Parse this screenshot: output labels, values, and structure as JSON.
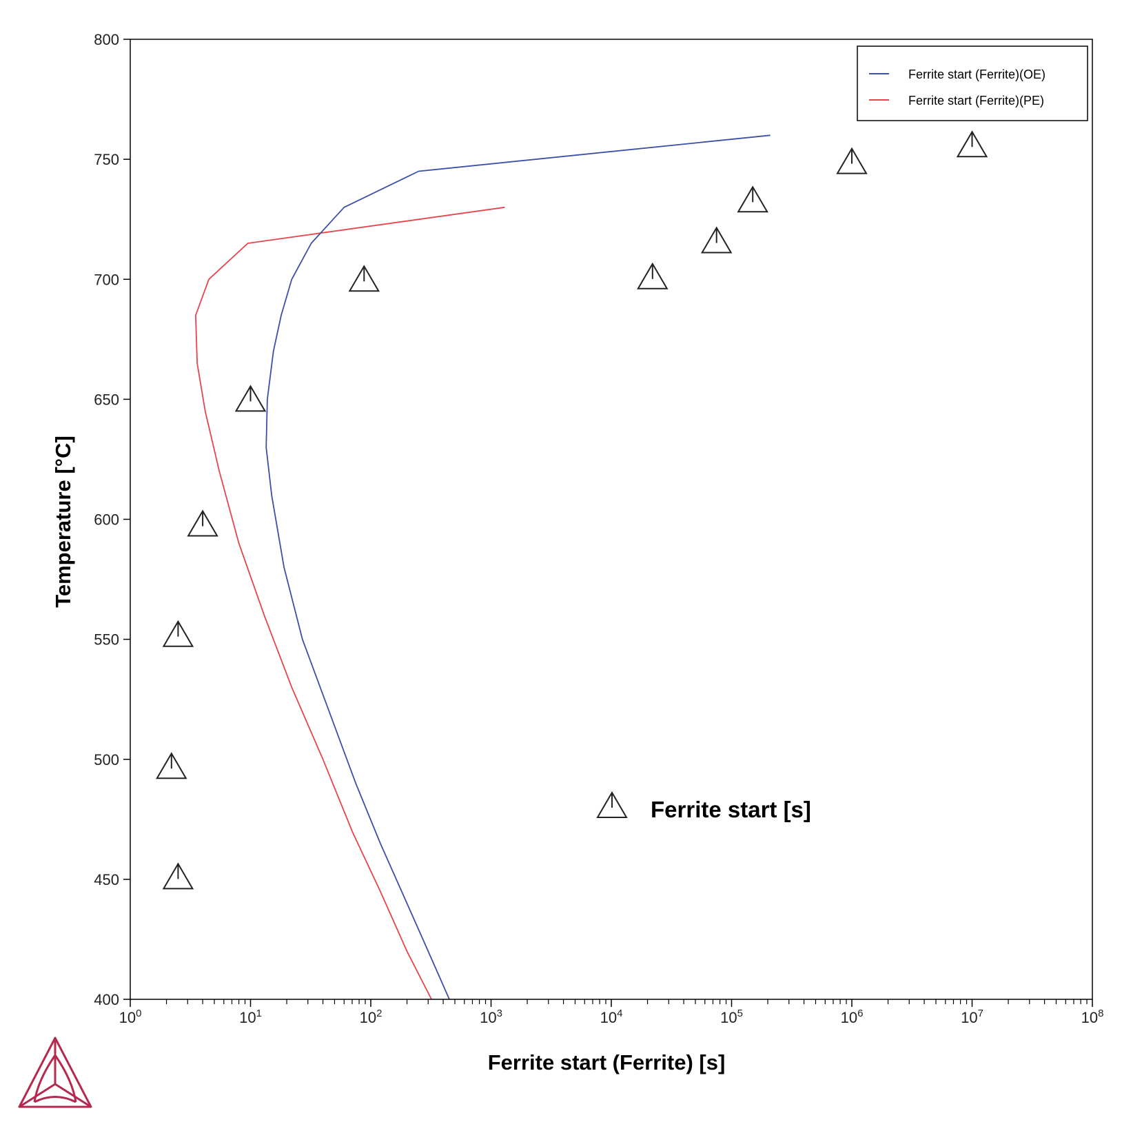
{
  "chart_data": {
    "type": "line",
    "title": "",
    "xlabel": "Ferrite start (Ferrite) [s]",
    "ylabel": "Temperature [°C]",
    "xscale": "log",
    "xlim": [
      1,
      100000000
    ],
    "ylim": [
      400,
      800
    ],
    "x_tick_labels": [
      {
        "base": "10",
        "exp": "0"
      },
      {
        "base": "10",
        "exp": "1"
      },
      {
        "base": "10",
        "exp": "2"
      },
      {
        "base": "10",
        "exp": "3"
      },
      {
        "base": "10",
        "exp": "4"
      },
      {
        "base": "10",
        "exp": "5"
      },
      {
        "base": "10",
        "exp": "6"
      },
      {
        "base": "10",
        "exp": "7"
      },
      {
        "base": "10",
        "exp": "8"
      }
    ],
    "y_ticks": [
      "400",
      "450",
      "500",
      "550",
      "600",
      "650",
      "700",
      "750",
      "800"
    ],
    "grid": false,
    "legend_position": "top-right",
    "series": [
      {
        "name": "Ferrite start (Ferrite)(OE)",
        "color": "#3a4fa8",
        "points": [
          [
            450,
            400
          ],
          [
            300,
            420
          ],
          [
            200,
            440
          ],
          [
            120,
            465
          ],
          [
            75,
            490
          ],
          [
            45,
            520
          ],
          [
            27,
            550
          ],
          [
            19,
            580
          ],
          [
            15,
            610
          ],
          [
            13.5,
            630
          ],
          [
            13.8,
            650
          ],
          [
            15.5,
            670
          ],
          [
            18,
            685
          ],
          [
            22,
            700
          ],
          [
            32,
            715
          ],
          [
            60,
            730
          ],
          [
            250,
            745
          ],
          [
            210000,
            760
          ]
        ]
      },
      {
        "name": "Ferrite start (Ferrite)(PE)",
        "color": "#e8424b",
        "points": [
          [
            320,
            400
          ],
          [
            200,
            420
          ],
          [
            120,
            445
          ],
          [
            70,
            470
          ],
          [
            40,
            500
          ],
          [
            22,
            530
          ],
          [
            13,
            560
          ],
          [
            8,
            590
          ],
          [
            5.5,
            620
          ],
          [
            4.2,
            645
          ],
          [
            3.6,
            665
          ],
          [
            3.5,
            685
          ],
          [
            4.5,
            700
          ],
          [
            9.5,
            715
          ],
          [
            1300,
            730
          ]
        ]
      },
      {
        "name": "Ferrite start [s]",
        "type": "scatter",
        "marker": "triangle",
        "color": "#222222",
        "points": [
          [
            2.5,
            451
          ],
          [
            2.2,
            497
          ],
          [
            2.5,
            552
          ],
          [
            4,
            598
          ],
          [
            10,
            650
          ],
          [
            88,
            700
          ],
          [
            22000,
            701
          ],
          [
            75000,
            716
          ],
          [
            150000,
            733
          ],
          [
            1000000,
            749
          ],
          [
            10000000,
            756
          ]
        ]
      }
    ],
    "annotation": "Ferrite start [s]"
  },
  "logo": {
    "name": "thermo-calc-logo",
    "color": "#b5294e"
  }
}
